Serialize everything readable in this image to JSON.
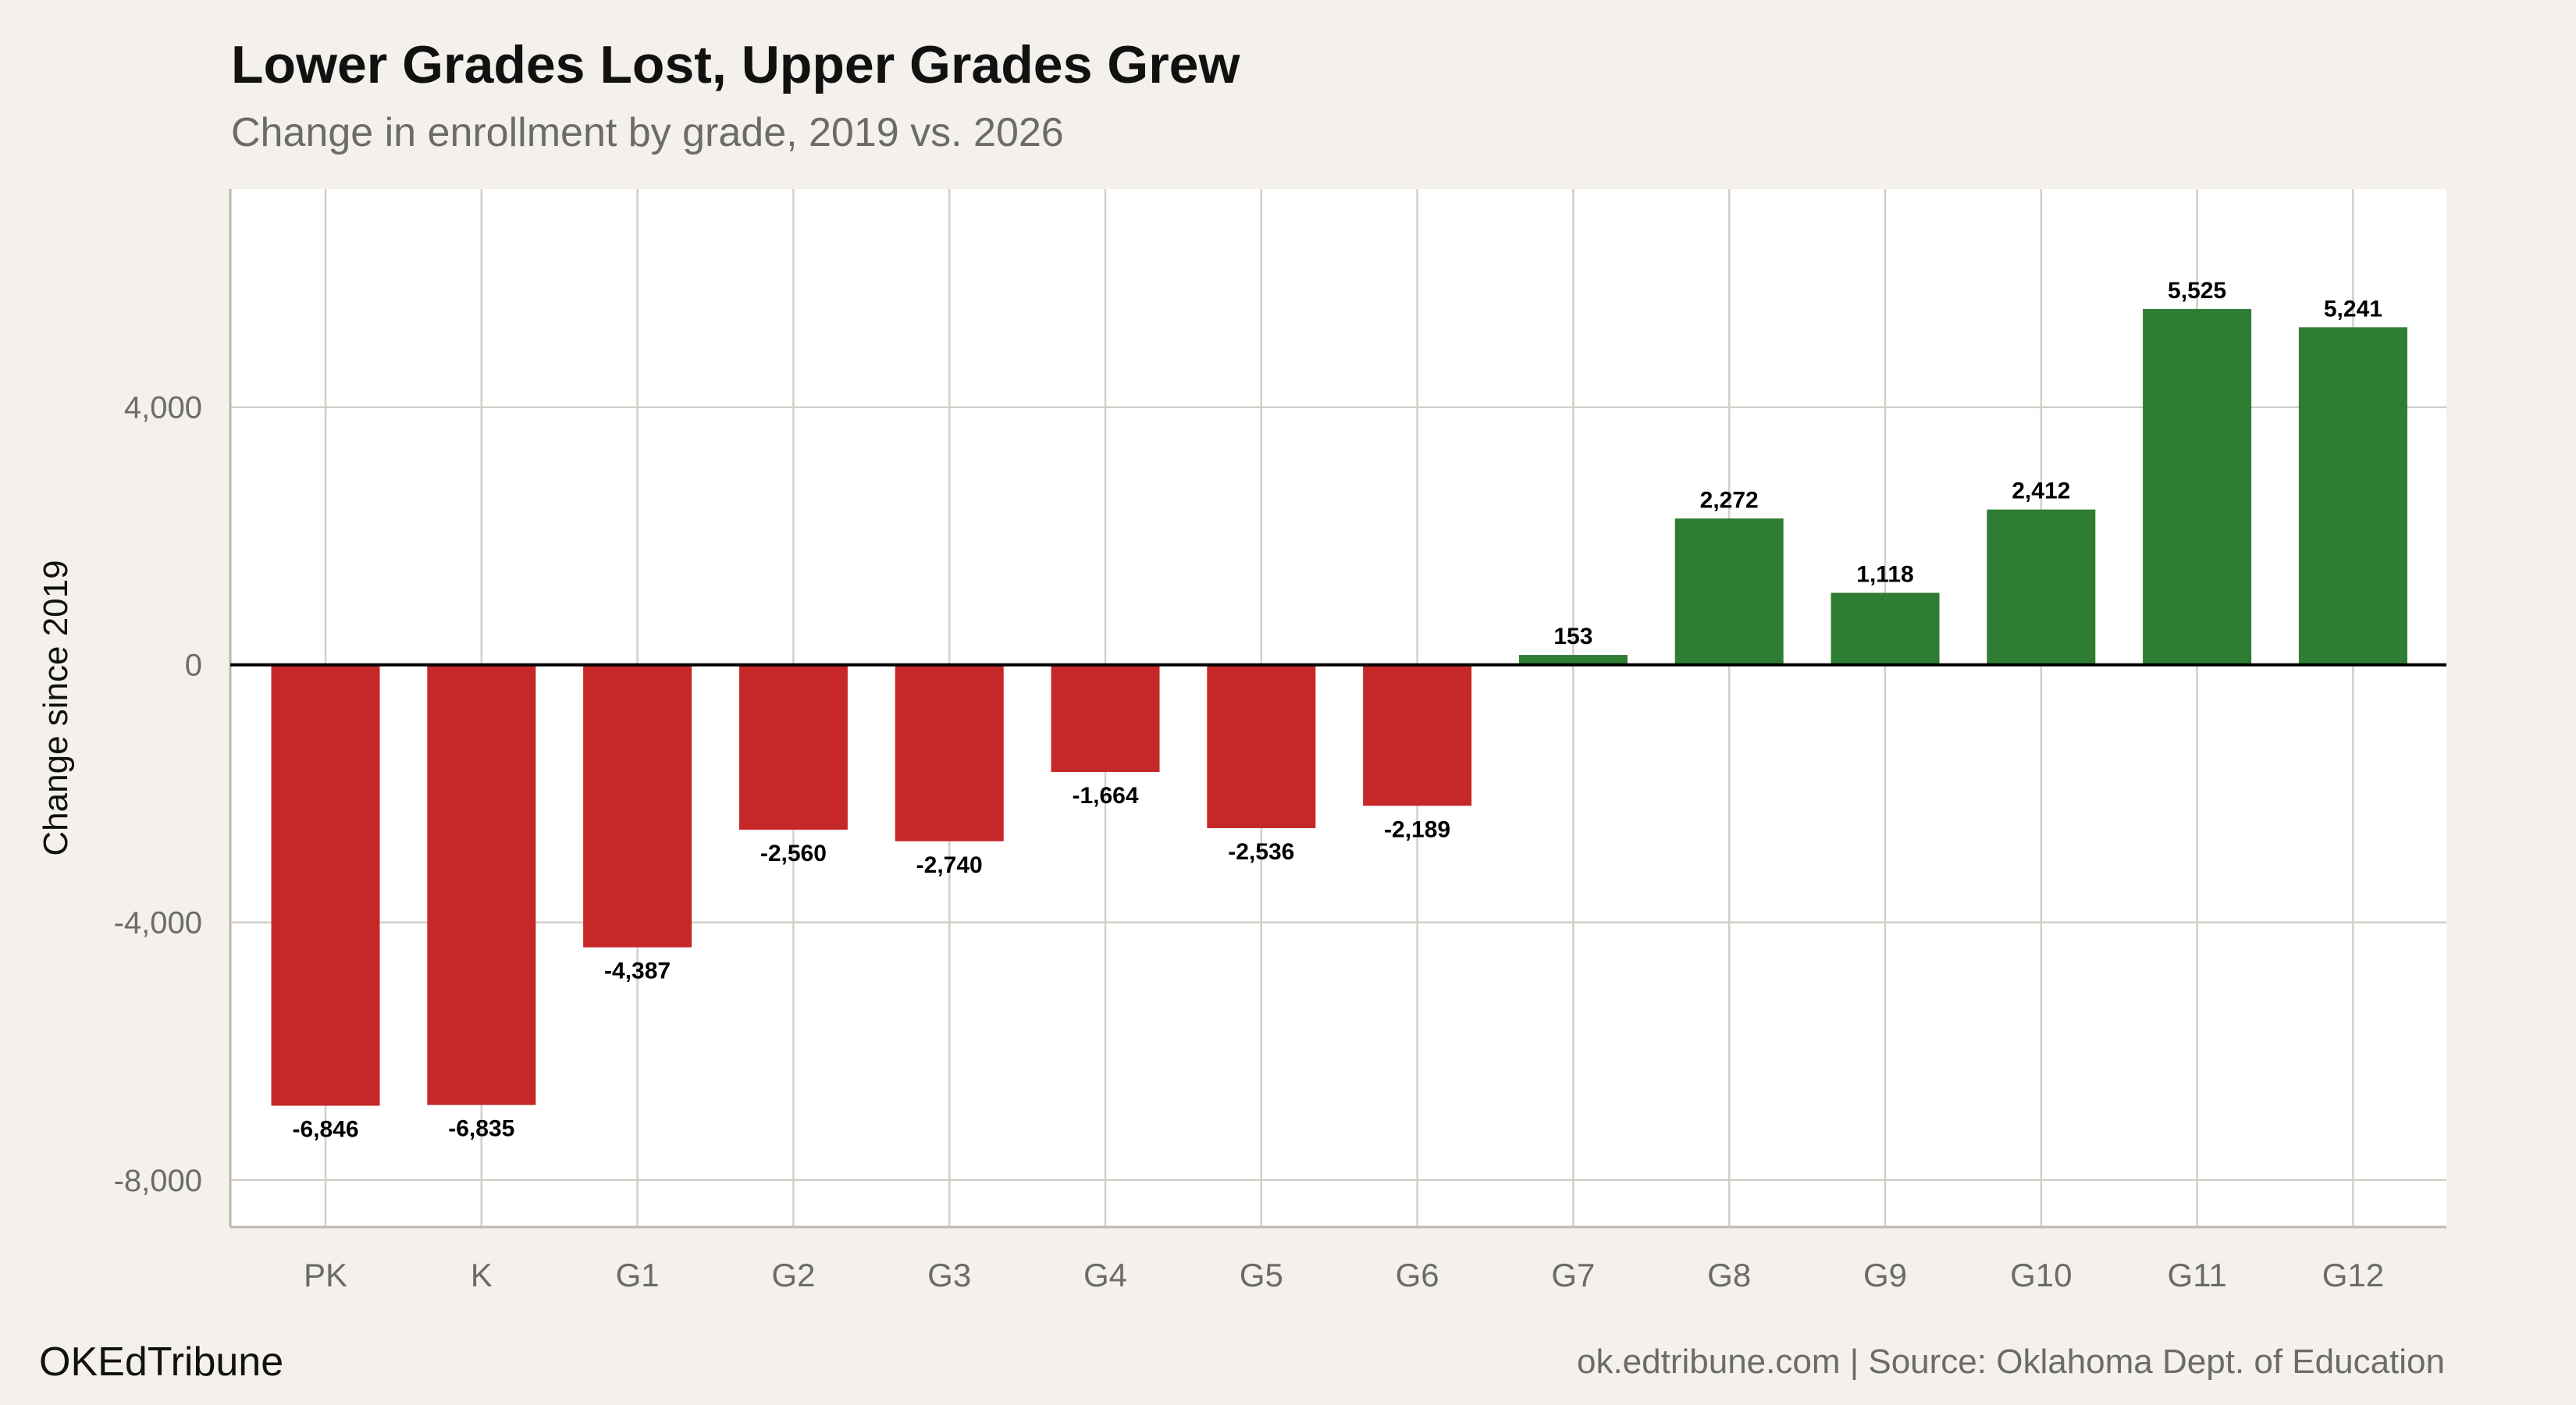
{
  "chart_data": {
    "type": "bar",
    "title": "Lower Grades Lost, Upper Grades Grew",
    "subtitle": "Change in enrollment by grade, 2019 vs. 2026",
    "xlabel": "",
    "ylabel": "Change since 2019",
    "categories": [
      "PK",
      "K",
      "G1",
      "G2",
      "G3",
      "G4",
      "G5",
      "G6",
      "G7",
      "G8",
      "G9",
      "G10",
      "G11",
      "G12"
    ],
    "values": [
      -6846,
      -6835,
      -4387,
      -2560,
      -2740,
      -1664,
      -2536,
      -2189,
      153,
      2272,
      1118,
      2412,
      5525,
      5241
    ],
    "data_labels": [
      "-6,846",
      "-6,835",
      "-4,387",
      "-2,560",
      "-2,740",
      "-1,664",
      "-2,536",
      "-2,189",
      "153",
      "2,272",
      "1,118",
      "2,412",
      "5,525",
      "5,241"
    ],
    "ylim": [
      -8730,
      7390
    ],
    "yticks": [
      -8000,
      -4000,
      0,
      4000
    ],
    "ytick_labels": [
      "-8,000",
      "-4,000",
      "0",
      "4,000"
    ],
    "grid": true,
    "colors": {
      "negative": "#c62828",
      "positive": "#2e7d32",
      "background": "#f4f1ec",
      "plot_background": "#ffffff",
      "grid": "#d3cfc7"
    }
  },
  "footer": {
    "brand": "OKEdTribune",
    "source": "ok.edtribune.com | Source: Oklahoma Dept. of Education"
  }
}
